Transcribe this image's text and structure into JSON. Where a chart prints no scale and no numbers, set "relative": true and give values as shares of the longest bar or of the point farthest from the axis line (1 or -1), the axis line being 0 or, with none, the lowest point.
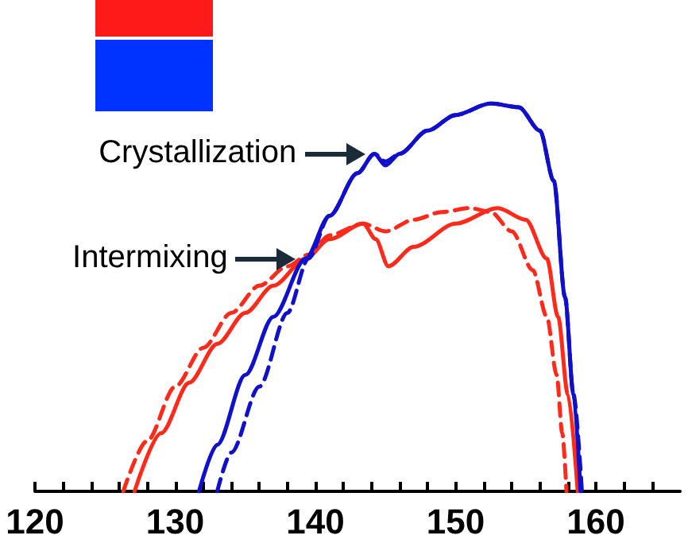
{
  "chart_data": {
    "type": "line",
    "relative": true,
    "marker": "none",
    "grid": false,
    "xlim": [
      120,
      166
    ],
    "xticks": [
      120,
      {
        "value": 122,
        "label": null
      },
      {
        "value": 124,
        "label": null
      },
      {
        "value": 126,
        "label": null
      },
      {
        "value": 128,
        "label": null
      },
      130,
      {
        "value": 132,
        "label": null
      },
      {
        "value": 134,
        "label": null
      },
      {
        "value": 136,
        "label": null
      },
      {
        "value": 138,
        "label": null
      },
      140,
      {
        "value": 142,
        "label": null
      },
      {
        "value": 144,
        "label": null
      },
      {
        "value": 146,
        "label": null
      },
      {
        "value": 148,
        "label": null
      },
      150,
      {
        "value": 152,
        "label": null
      },
      {
        "value": 154,
        "label": null
      },
      {
        "value": 156,
        "label": null
      },
      {
        "value": 158,
        "label": null
      },
      160,
      {
        "value": 162,
        "label": null
      },
      {
        "value": 164,
        "label": null
      }
    ],
    "annotations": [
      {
        "text": "Crystallization",
        "x": 144.2,
        "y": 0.87
      },
      {
        "text": "Intermixing",
        "x": 139.3,
        "y": 0.6
      }
    ],
    "series": [
      {
        "color": "#ff2a1a",
        "line_style": "solid",
        "x": [
          127.1,
          129,
          131,
          133,
          135,
          137,
          139.3,
          141,
          143.4,
          144.3,
          145.2,
          147,
          150,
          153,
          155,
          156.5,
          157.3,
          158,
          158.7
        ],
        "values": [
          0,
          0.15,
          0.28,
          0.38,
          0.46,
          0.53,
          0.6,
          0.65,
          0.69,
          0.65,
          0.58,
          0.63,
          0.69,
          0.73,
          0.7,
          0.6,
          0.45,
          0.25,
          0
        ]
      },
      {
        "color": "#ff2a1a",
        "line_style": "dashed",
        "x": [
          126.3,
          128,
          130,
          132,
          134,
          136,
          138,
          139.5,
          141,
          143.4,
          145,
          147,
          149,
          151,
          152.5,
          154,
          155.5,
          156.5,
          157.2,
          157.6,
          157.9
        ],
        "values": [
          0,
          0.13,
          0.27,
          0.37,
          0.46,
          0.53,
          0.58,
          0.61,
          0.66,
          0.69,
          0.67,
          0.7,
          0.72,
          0.73,
          0.72,
          0.67,
          0.57,
          0.45,
          0.3,
          0.15,
          0
        ]
      },
      {
        "color": "#1010cc",
        "line_style": "solid",
        "x": [
          131.7,
          133,
          135,
          137,
          139.3,
          141,
          143,
          144.2,
          145,
          146,
          148,
          150,
          152.5,
          154.5,
          156,
          157,
          157.8,
          158.4,
          158.9
        ],
        "values": [
          0,
          0.12,
          0.3,
          0.45,
          0.6,
          0.71,
          0.82,
          0.87,
          0.84,
          0.87,
          0.93,
          0.97,
          1,
          0.99,
          0.93,
          0.8,
          0.5,
          0.25,
          0
        ]
      },
      {
        "color": "#1010cc",
        "line_style": "dashed",
        "x": [
          133,
          134,
          136,
          138,
          139.5,
          141,
          143,
          144.2,
          145,
          146,
          148,
          150,
          152.5,
          154.5,
          156,
          157,
          157.8,
          158.4,
          159
        ],
        "values": [
          0,
          0.1,
          0.27,
          0.46,
          0.6,
          0.71,
          0.82,
          0.87,
          0.85,
          0.87,
          0.93,
          0.97,
          1,
          0.99,
          0.93,
          0.8,
          0.5,
          0.25,
          0
        ]
      }
    ]
  }
}
